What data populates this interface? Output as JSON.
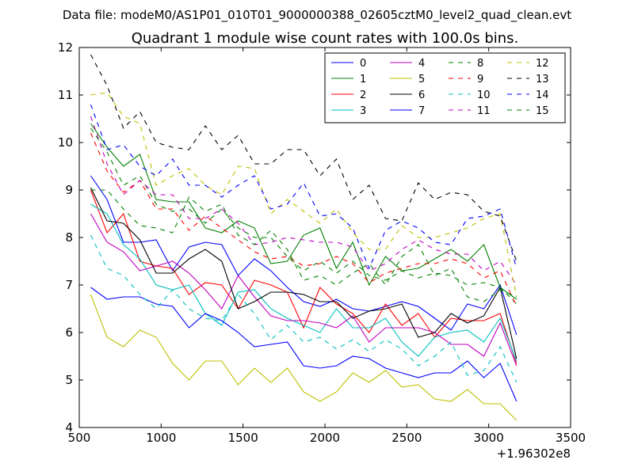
{
  "supertitle": "Data file: modeM0/AS1P01_010T01_9000000388_02605cztM0_level2_quad_clean.evt",
  "chart_data": {
    "type": "line",
    "title": "Quadrant 1 module wise count rates with 100.0s bins.",
    "xlabel": "",
    "ylabel": "",
    "xlim": [
      500,
      3500
    ],
    "ylim": [
      4,
      12
    ],
    "x_offset_label": "+1.96302e8",
    "xticks": [
      500,
      1000,
      1500,
      2000,
      2500,
      3000,
      3500
    ],
    "yticks": [
      4,
      5,
      6,
      7,
      8,
      9,
      10,
      11,
      12
    ],
    "legend_position": "top-right",
    "legend_columns": 4,
    "x": [
      570,
      670,
      770,
      870,
      970,
      1070,
      1170,
      1270,
      1370,
      1470,
      1570,
      1670,
      1770,
      1870,
      1970,
      2070,
      2170,
      2270,
      2370,
      2470,
      2570,
      2670,
      2770,
      2870,
      2970,
      3070,
      3170
    ],
    "series": [
      {
        "name": "0",
        "color": "#0000ff",
        "style": "solid",
        "values": [
          9.3,
          8.8,
          7.9,
          7.9,
          7.95,
          7.3,
          7.8,
          7.9,
          7.85,
          7.2,
          7.55,
          7.3,
          6.95,
          6.65,
          6.55,
          6.7,
          6.5,
          6.45,
          6.55,
          6.65,
          6.55,
          6.3,
          6.05,
          6.6,
          6.5,
          7.0,
          5.95
        ]
      },
      {
        "name": "1",
        "color": "#008000",
        "style": "solid",
        "values": [
          10.4,
          9.9,
          9.5,
          9.75,
          8.8,
          8.75,
          8.75,
          8.2,
          8.1,
          8.35,
          8.2,
          7.45,
          7.5,
          8.05,
          8.2,
          7.35,
          7.9,
          7.0,
          7.6,
          7.3,
          7.35,
          7.55,
          7.75,
          7.5,
          7.85,
          6.95,
          6.7
        ]
      },
      {
        "name": "2",
        "color": "#ff0000",
        "style": "solid",
        "values": [
          9.0,
          8.1,
          8.5,
          7.5,
          7.4,
          7.35,
          6.8,
          7.05,
          7.0,
          6.5,
          7.1,
          7.0,
          6.85,
          6.1,
          6.95,
          6.6,
          6.4,
          6.0,
          6.6,
          6.15,
          6.4,
          5.9,
          6.3,
          6.25,
          6.25,
          6.4,
          5.35
        ]
      },
      {
        "name": "3",
        "color": "#00bfbf",
        "style": "solid",
        "values": [
          8.7,
          8.5,
          7.85,
          7.55,
          7.0,
          6.9,
          7.0,
          6.4,
          6.15,
          6.85,
          6.9,
          6.5,
          6.3,
          6.15,
          6.0,
          6.5,
          6.1,
          6.1,
          6.3,
          5.8,
          5.5,
          5.9,
          6.0,
          6.05,
          5.8,
          6.3,
          5.4
        ]
      },
      {
        "name": "4",
        "color": "#bf00bf",
        "style": "solid",
        "values": [
          8.5,
          7.9,
          7.7,
          7.3,
          7.4,
          7.5,
          7.25,
          6.9,
          6.5,
          7.2,
          6.75,
          6.35,
          6.25,
          6.25,
          6.2,
          6.1,
          6.35,
          5.8,
          6.1,
          6.1,
          6.1,
          6.0,
          5.75,
          5.75,
          5.5,
          6.2,
          5.3
        ]
      },
      {
        "name": "5",
        "color": "#bfbf00",
        "style": "solid",
        "values": [
          6.8,
          5.9,
          5.7,
          6.05,
          5.9,
          5.35,
          5.0,
          5.4,
          5.4,
          4.9,
          5.25,
          4.95,
          5.25,
          4.75,
          4.55,
          4.75,
          5.15,
          4.95,
          5.2,
          4.85,
          4.9,
          4.6,
          4.55,
          4.8,
          4.5,
          4.5,
          4.15
        ]
      },
      {
        "name": "6",
        "color": "#000000",
        "style": "solid",
        "values": [
          9.05,
          8.35,
          8.3,
          7.95,
          7.25,
          7.25,
          7.55,
          7.75,
          7.5,
          6.5,
          6.65,
          6.85,
          6.85,
          6.8,
          6.65,
          6.65,
          6.3,
          6.45,
          6.5,
          6.6,
          5.9,
          6.0,
          6.4,
          6.2,
          6.35,
          6.95,
          5.45
        ]
      },
      {
        "name": "7",
        "color": "#0000ff",
        "style": "solid",
        "values": [
          6.95,
          6.7,
          6.75,
          6.75,
          6.6,
          6.55,
          6.1,
          6.4,
          6.25,
          6.0,
          5.7,
          5.75,
          5.8,
          5.3,
          5.25,
          5.3,
          5.5,
          5.45,
          5.25,
          5.15,
          5.05,
          5.15,
          5.15,
          5.4,
          5.05,
          5.35,
          4.55
        ]
      },
      {
        "name": "8",
        "color": "#008000",
        "style": "dashed",
        "values": [
          10.3,
          9.8,
          9.1,
          9.3,
          8.7,
          8.55,
          8.6,
          8.3,
          8.6,
          8.2,
          8.0,
          8.0,
          7.6,
          7.3,
          7.5,
          7.25,
          7.5,
          7.2,
          7.1,
          7.3,
          7.15,
          7.25,
          7.2,
          7.0,
          7.05,
          6.95,
          6.6
        ]
      },
      {
        "name": "9",
        "color": "#ff0000",
        "style": "dashed",
        "values": [
          10.2,
          9.4,
          8.95,
          9.2,
          8.6,
          8.6,
          8.15,
          8.45,
          8.2,
          7.95,
          7.7,
          7.55,
          7.6,
          7.4,
          7.45,
          7.6,
          7.45,
          7.05,
          7.25,
          7.35,
          7.45,
          7.45,
          7.55,
          7.45,
          7.15,
          7.3,
          6.55
        ]
      },
      {
        "name": "10",
        "color": "#00bfbf",
        "style": "dashed",
        "values": [
          8.05,
          7.35,
          7.2,
          6.8,
          6.5,
          6.9,
          6.5,
          6.3,
          6.25,
          6.8,
          6.4,
          5.85,
          6.15,
          5.8,
          5.9,
          5.65,
          5.85,
          5.6,
          5.85,
          5.65,
          5.3,
          5.5,
          5.8,
          5.1,
          5.2,
          5.7,
          4.95
        ]
      },
      {
        "name": "11",
        "color": "#bf00bf",
        "style": "dashed",
        "values": [
          10.55,
          9.55,
          8.9,
          9.2,
          8.9,
          8.9,
          8.4,
          8.4,
          8.6,
          8.3,
          7.85,
          7.9,
          8.0,
          7.95,
          7.9,
          7.9,
          7.8,
          7.3,
          7.45,
          7.75,
          7.95,
          7.75,
          7.65,
          7.65,
          7.3,
          7.5,
          7.0
        ]
      },
      {
        "name": "12",
        "color": "#bfbf00",
        "style": "dashed",
        "values": [
          11.0,
          11.05,
          10.55,
          10.4,
          9.1,
          9.3,
          9.45,
          9.1,
          8.9,
          9.5,
          9.45,
          8.5,
          8.8,
          8.55,
          8.3,
          8.6,
          8.1,
          7.75,
          7.75,
          8.25,
          8.0,
          8.0,
          8.1,
          8.2,
          8.4,
          8.5,
          6.75
        ]
      },
      {
        "name": "13",
        "color": "#000000",
        "style": "dashed",
        "values": [
          11.85,
          11.2,
          10.3,
          10.65,
          10.0,
          9.9,
          9.85,
          10.35,
          9.85,
          10.15,
          9.55,
          9.55,
          9.85,
          9.85,
          9.3,
          9.65,
          8.8,
          9.1,
          8.4,
          8.35,
          9.15,
          8.8,
          8.95,
          8.9,
          8.55,
          8.45,
          7.5
        ]
      },
      {
        "name": "14",
        "color": "#0000ff",
        "style": "dashed",
        "values": [
          10.8,
          9.85,
          9.95,
          9.5,
          9.3,
          9.65,
          9.1,
          9.1,
          8.85,
          9.1,
          9.3,
          8.6,
          8.7,
          9.15,
          8.45,
          8.5,
          8.2,
          7.35,
          8.15,
          8.35,
          8.2,
          7.9,
          7.85,
          8.4,
          8.45,
          8.6,
          7.35
        ]
      },
      {
        "name": "15",
        "color": "#008000",
        "style": "dashed",
        "values": [
          9.0,
          9.0,
          8.6,
          8.25,
          8.2,
          8.1,
          8.85,
          8.55,
          8.7,
          8.05,
          7.85,
          8.15,
          7.75,
          7.1,
          7.2,
          7.0,
          7.25,
          7.45,
          7.0,
          7.6,
          7.85,
          7.2,
          7.35,
          6.75,
          6.65,
          6.9,
          6.75
        ]
      }
    ]
  }
}
